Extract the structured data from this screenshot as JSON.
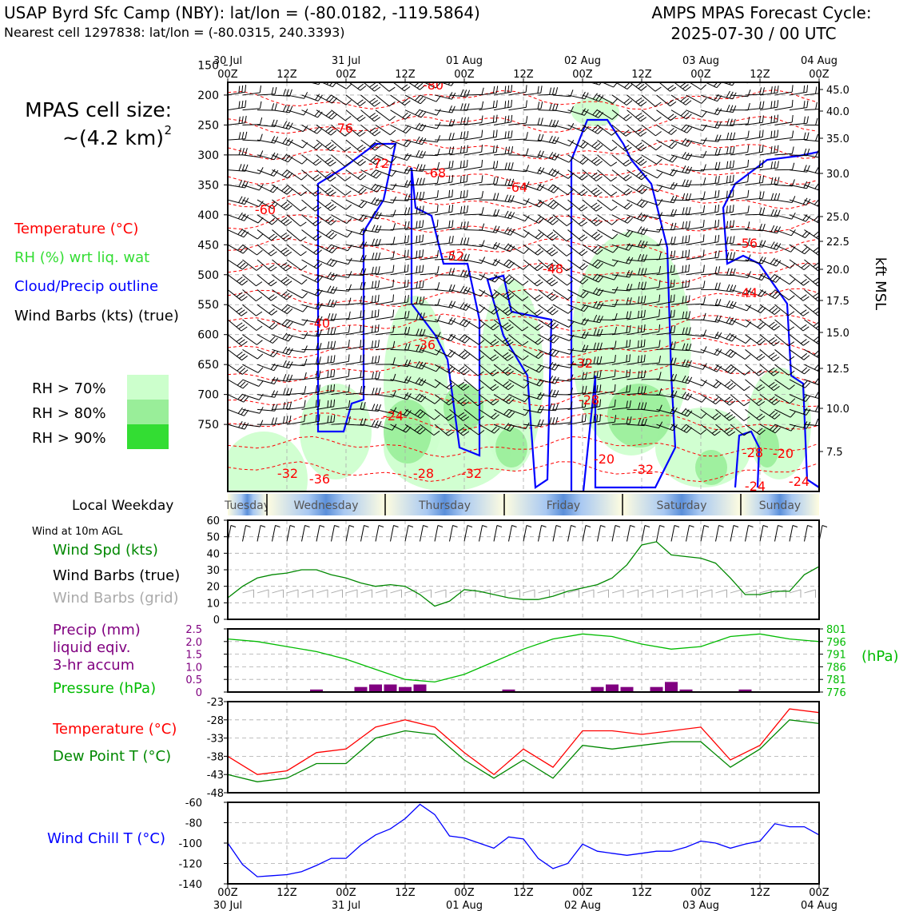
{
  "header": {
    "station": "USAP Byrd Sfc Camp (NBY): lat/lon = (-80.0182, -119.5864)",
    "cell": "Nearest cell 1297838: lat/lon = (-80.0315, 240.3393)",
    "cycle_line1": "AMPS MPAS Forecast Cycle:",
    "cycle_line2": "2025-07-30 / 00 UTC"
  },
  "legend": {
    "cell_size_line1": "MPAS cell size:",
    "cell_size_line2": "~(4.2 km)",
    "cell_size_exp": "2",
    "temperature": "Temperature (°C)",
    "rh": "RH (%) wrt liq. wat",
    "cloud": "Cloud/Precip outline",
    "wind": "Wind Barbs (kts) (true)",
    "rh70": "RH > 70%",
    "rh80": "RH > 80%",
    "rh90": "RH > 90%"
  },
  "time_axis": {
    "top_dates": [
      "30 Jul",
      "",
      "31 Jul",
      "",
      "01 Aug",
      "",
      "02 Aug",
      "",
      "03 Aug",
      "",
      "04 Aug"
    ],
    "hours": [
      "00Z",
      "12Z",
      "00Z",
      "12Z",
      "00Z",
      "12Z",
      "00Z",
      "12Z",
      "00Z",
      "12Z",
      "00Z"
    ]
  },
  "weekday_bar": {
    "label": "Local Weekday",
    "days": [
      "Tuesday",
      "Wednesday",
      "Thursday",
      "Friday",
      "Saturday",
      "Sunday"
    ]
  },
  "colors": {
    "temperature": "#ff0000",
    "rh": "#33dd33",
    "cloud": "#0000ff",
    "wind": "#000000",
    "precip": "#800080",
    "pressure": "#00aa00",
    "windchill": "#0000ff"
  },
  "chart_data": [
    {
      "type": "cross-section",
      "title": "",
      "ylabel_right": "kft MSL",
      "y_pressure_ticks": [
        150,
        200,
        250,
        300,
        350,
        400,
        450,
        500,
        550,
        600,
        650,
        700,
        750
      ],
      "y_kft_ticks": [
        "45.0",
        "40.0",
        "35.0",
        "30.0",
        "25.0",
        "22.5",
        "20.0",
        "17.5",
        "15.0",
        "12.5",
        "10.0",
        "7.5"
      ],
      "temperature_labels": [
        "-80",
        "-76",
        "-72",
        "-68",
        "-64",
        "-60",
        "-56",
        "-52",
        "-48",
        "-44",
        "-40",
        "-36",
        "-32",
        "-28",
        "-24",
        "-20"
      ]
    },
    {
      "type": "line",
      "title": "Wind at 10m AGL",
      "series": [
        {
          "name": "Wind Spd (kts)",
          "x": [
            0,
            3,
            6,
            9,
            12,
            15,
            18,
            21,
            24,
            27,
            30,
            33,
            36,
            39,
            42,
            45,
            48,
            51,
            54,
            57,
            60,
            63,
            66,
            69,
            72,
            75,
            78,
            81,
            84,
            87,
            90,
            93,
            96,
            99,
            102,
            105,
            108,
            111,
            114,
            117,
            120
          ],
          "values": [
            13,
            20,
            25,
            27,
            28,
            30,
            30,
            27,
            25,
            22,
            20,
            21,
            20,
            15,
            8,
            11,
            18,
            17,
            15,
            13,
            12,
            12,
            14,
            17,
            19,
            21,
            25,
            33,
            45,
            47,
            39,
            38,
            37,
            34,
            25,
            15,
            15,
            17,
            17,
            27,
            32
          ]
        },
        {
          "name": "Wind Barbs (true)",
          "values": []
        },
        {
          "name": "Wind Barbs (grid)",
          "values": []
        }
      ],
      "ylim": [
        0,
        60
      ],
      "yticks": [
        0,
        10,
        20,
        30,
        40,
        50,
        60
      ]
    },
    {
      "type": "bar+line",
      "series": [
        {
          "name": "Precip (mm) liquid eqiv. 3-hr accum",
          "x": [
            18,
            27,
            30,
            33,
            36,
            39,
            57,
            75,
            78,
            81,
            87,
            90,
            93,
            105
          ],
          "values": [
            0.1,
            0.2,
            0.3,
            0.3,
            0.2,
            0.3,
            0.1,
            0.2,
            0.3,
            0.2,
            0.2,
            0.4,
            0.1,
            0.1
          ]
        },
        {
          "name": "Pressure (hPa)",
          "x": [
            0,
            6,
            12,
            18,
            24,
            30,
            36,
            42,
            48,
            54,
            60,
            66,
            72,
            78,
            84,
            90,
            96,
            102,
            108,
            114,
            120
          ],
          "values": [
            797,
            796,
            794,
            792,
            789,
            785,
            781,
            780,
            783,
            788,
            793,
            797,
            799,
            798,
            795,
            793,
            794,
            798,
            799,
            797,
            796
          ]
        }
      ],
      "precip_ylim": [
        0,
        2.5
      ],
      "precip_yticks": [
        "0",
        "0.5",
        "1.0",
        "1.5",
        "2.0",
        "2.5"
      ],
      "pressure_ylim": [
        776,
        801
      ],
      "pressure_yticks": [
        "801",
        "796",
        "791",
        "786",
        "781",
        "776"
      ],
      "precip_label": [
        "Precip (mm)",
        "liquid eqiv.",
        "3-hr accum"
      ],
      "pressure_label": "Pressure (hPa)",
      "pressure_unit": "(hPa)"
    },
    {
      "type": "line",
      "series": [
        {
          "name": "Temperature (°C)",
          "x": [
            0,
            6,
            12,
            18,
            24,
            30,
            36,
            42,
            48,
            54,
            60,
            66,
            72,
            78,
            84,
            90,
            96,
            102,
            108,
            114,
            120
          ],
          "values": [
            -38,
            -43,
            -42,
            -37,
            -36,
            -30,
            -28,
            -30,
            -37,
            -43,
            -36,
            -41,
            -31,
            -31,
            -32,
            -31,
            -30,
            -39,
            -35,
            -25,
            -26
          ]
        },
        {
          "name": "Dew Point T (°C)",
          "x": [
            0,
            6,
            12,
            18,
            24,
            30,
            36,
            42,
            48,
            54,
            60,
            66,
            72,
            78,
            84,
            90,
            96,
            102,
            108,
            114,
            120
          ],
          "values": [
            -43,
            -45,
            -44,
            -40,
            -40,
            -33,
            -31,
            -32,
            -39,
            -44,
            -39,
            -44,
            -35,
            -36,
            -35,
            -34,
            -34,
            -41,
            -36,
            -28,
            -29
          ]
        }
      ],
      "ylim": [
        -48,
        -23
      ],
      "yticks": [
        -48,
        -43,
        -38,
        -33,
        -28,
        -23
      ]
    },
    {
      "type": "line",
      "series": [
        {
          "name": "Wind Chill T (°C)",
          "x": [
            0,
            3,
            6,
            9,
            12,
            15,
            18,
            21,
            24,
            27,
            30,
            33,
            36,
            39,
            42,
            45,
            48,
            51,
            54,
            57,
            60,
            63,
            66,
            69,
            72,
            75,
            78,
            81,
            84,
            87,
            90,
            93,
            96,
            99,
            102,
            105,
            108,
            111,
            114,
            117,
            120
          ],
          "values": [
            -100,
            -121,
            -133,
            -132,
            -131,
            -128,
            -122,
            -115,
            -115,
            -102,
            -92,
            -86,
            -76,
            -62,
            -72,
            -93,
            -95,
            -100,
            -105,
            -94,
            -96,
            -115,
            -125,
            -120,
            -101,
            -108,
            -110,
            -112,
            -110,
            -108,
            -108,
            -104,
            -98,
            -100,
            -105,
            -101,
            -98,
            -81,
            -84,
            -84,
            -92
          ]
        }
      ],
      "ylim": [
        -140,
        -60
      ],
      "yticks": [
        -140,
        -120,
        -100,
        -80,
        -60
      ]
    }
  ]
}
